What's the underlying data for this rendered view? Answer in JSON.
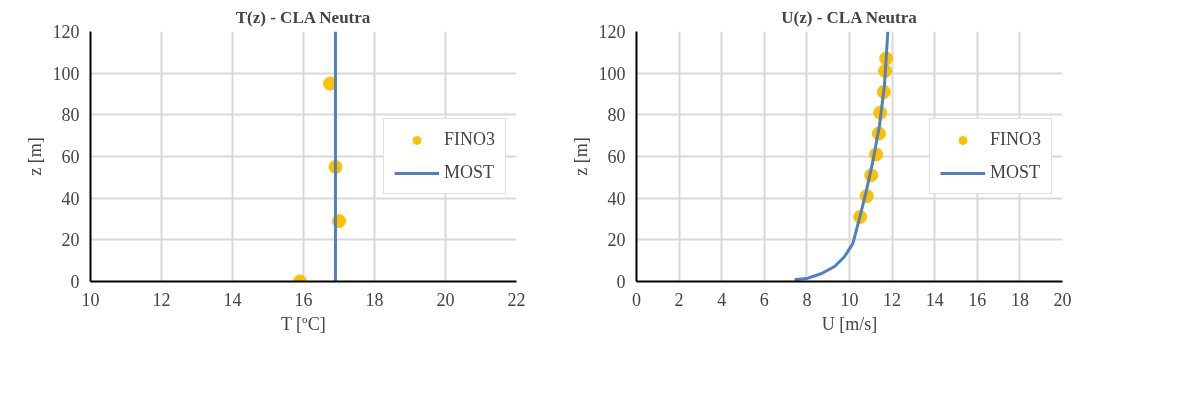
{
  "chart_data": [
    {
      "type": "scatter",
      "title": "T(z) - CLA Neutra",
      "xlabel": "T [ºC]",
      "ylabel": "z [m]",
      "xlim": [
        10,
        22
      ],
      "xticks": [
        10,
        12,
        14,
        16,
        18,
        20,
        22
      ],
      "ylim": [
        0,
        120
      ],
      "yticks": [
        0,
        20,
        40,
        60,
        80,
        100,
        120
      ],
      "grid": true,
      "legend": "right",
      "series": [
        {
          "name": "FINO3",
          "marker": "circle",
          "color": "#ffc000",
          "x": [
            16.75,
            16.9,
            17.0,
            15.9
          ],
          "values": [
            95,
            55,
            29,
            0
          ]
        },
        {
          "name": "MOST",
          "type": "line",
          "marker": "none",
          "color": "#4f81bd",
          "x": [
            16.9,
            16.9
          ],
          "values": [
            0,
            120
          ]
        }
      ]
    },
    {
      "type": "scatter",
      "title": "U(z) - CLA Neutra",
      "xlabel": "U [m/s]",
      "ylabel": "z [m]",
      "xlim": [
        0,
        20
      ],
      "xticks": [
        0,
        2,
        4,
        6,
        8,
        10,
        12,
        14,
        16,
        18,
        20
      ],
      "ylim": [
        0,
        120
      ],
      "yticks": [
        0,
        20,
        40,
        60,
        80,
        100,
        120
      ],
      "grid": true,
      "legend": "right",
      "series": [
        {
          "name": "FINO3",
          "marker": "circle",
          "color": "#ffc000",
          "x": [
            11.72,
            11.67,
            11.61,
            11.44,
            11.38,
            11.25,
            11.02,
            10.81,
            10.5
          ],
          "values": [
            107,
            101,
            91,
            81,
            71,
            61,
            51,
            41,
            31
          ]
        },
        {
          "name": "MOST",
          "type": "line",
          "marker": "none",
          "color": "#4f81bd",
          "x": [
            7.42,
            8.05,
            8.67,
            9.3,
            9.77,
            10.16,
            10.47,
            10.78,
            11.09,
            11.41,
            11.64,
            11.8
          ],
          "values": [
            0.8,
            1.6,
            3.7,
            7.2,
            12,
            18.3,
            30.3,
            43,
            57.4,
            75,
            94,
            120
          ]
        }
      ]
    }
  ]
}
